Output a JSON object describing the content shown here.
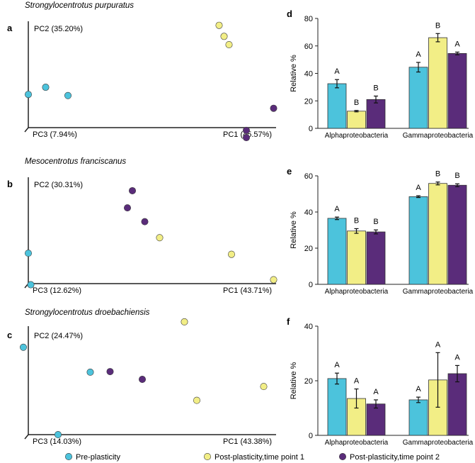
{
  "colors": {
    "pre": "#4cc3dc",
    "tp1": "#f2ee86",
    "tp2": "#5a2c7a",
    "axis": "#222222",
    "stroke": "#333333"
  },
  "legend": {
    "items": [
      {
        "label": "Pre-plasticity",
        "color_key": "pre"
      },
      {
        "label": "Post-plasticity,time point 1",
        "color_key": "tp1"
      },
      {
        "label": "Post-plasticity,time point 2",
        "color_key": "tp2"
      }
    ]
  },
  "chart_data": [
    {
      "id": "a",
      "type": "scatter",
      "panel_label": "a",
      "title": "Strongylocentrotus purpuratus",
      "xlabel": "PC1 (45.57%)",
      "ylabel": "PC2 (35.20%)",
      "corner_label": "PC3 (7.94%)",
      "series": [
        {
          "group": "pre",
          "points": [
            [
              0,
              0.6
            ],
            [
              0.07,
              0.73
            ],
            [
              0.16,
              0.58
            ]
          ]
        },
        {
          "group": "tp1",
          "points": [
            [
              0.77,
              1.85
            ],
            [
              0.79,
              1.65
            ],
            [
              0.81,
              1.5
            ]
          ]
        },
        {
          "group": "tp2",
          "points": [
            [
              0.88,
              -0.05
            ],
            [
              0.88,
              -0.18
            ],
            [
              0.99,
              0.35
            ]
          ]
        }
      ]
    },
    {
      "id": "b",
      "type": "scatter",
      "panel_label": "b",
      "title": "Mesocentrotus franciscanus",
      "xlabel": "PC1 (43.71%)",
      "ylabel": "PC2 (30.31%)",
      "corner_label": "PC3 (12.62%)",
      "series": [
        {
          "group": "pre",
          "points": [
            [
              0,
              0.55
            ],
            [
              0.01,
              -0.02
            ]
          ]
        },
        {
          "group": "tp1",
          "points": [
            [
              0.53,
              0.83
            ],
            [
              0.82,
              0.53
            ],
            [
              0.99,
              0.07
            ]
          ]
        },
        {
          "group": "tp2",
          "points": [
            [
              0.42,
              1.68
            ],
            [
              0.4,
              1.37
            ],
            [
              0.47,
              1.12
            ]
          ]
        }
      ]
    },
    {
      "id": "c",
      "type": "scatter",
      "panel_label": "c",
      "title": "Strongylocentrotus droebachiensis",
      "xlabel": "PC1 (43.38%)",
      "ylabel": "PC2 (24.47%)",
      "corner_label": "PC3 (14.03%)",
      "series": [
        {
          "group": "pre",
          "points": [
            [
              -0.02,
              1.58
            ],
            [
              0.25,
              1.13
            ],
            [
              0.12,
              0.0
            ]
          ]
        },
        {
          "group": "tp1",
          "points": [
            [
              0.63,
              2.04
            ],
            [
              0.68,
              0.62
            ],
            [
              0.95,
              0.87
            ]
          ]
        },
        {
          "group": "tp2",
          "points": [
            [
              0.33,
              1.14
            ],
            [
              0.46,
              1.0
            ]
          ]
        }
      ]
    },
    {
      "id": "d",
      "type": "bar",
      "panel_label": "d",
      "ylabel": "Relative %",
      "ylim": [
        0,
        80
      ],
      "yticks": [
        0,
        20,
        40,
        60,
        80
      ],
      "categories": [
        "Alphaproteobacteria",
        "Gammaproteobacteria"
      ],
      "series": [
        {
          "group": "pre",
          "values": [
            32.5,
            44.5
          ],
          "errors": [
            3,
            3.5
          ],
          "letters": [
            "A",
            "A"
          ]
        },
        {
          "group": "tp1",
          "values": [
            12.5,
            66
          ],
          "errors": [
            0.5,
            3
          ],
          "letters": [
            "B",
            "B"
          ]
        },
        {
          "group": "tp2",
          "values": [
            21,
            54.5
          ],
          "errors": [
            2.5,
            1
          ],
          "letters": [
            "B",
            "A"
          ]
        }
      ]
    },
    {
      "id": "e",
      "type": "bar",
      "panel_label": "e",
      "ylabel": "Relative %",
      "ylim": [
        0,
        60
      ],
      "yticks": [
        0,
        20,
        40,
        60
      ],
      "categories": [
        "Alphaproteobacteria",
        "Gammaproteobacteria"
      ],
      "series": [
        {
          "group": "pre",
          "values": [
            36.5,
            48.5
          ],
          "errors": [
            0.7,
            0.5
          ],
          "letters": [
            "A",
            "A"
          ]
        },
        {
          "group": "tp1",
          "values": [
            29.5,
            55.8
          ],
          "errors": [
            1.3,
            0.8
          ],
          "letters": [
            "B",
            "B"
          ]
        },
        {
          "group": "tp2",
          "values": [
            29,
            54.8
          ],
          "errors": [
            1.1,
            0.8
          ],
          "letters": [
            "B",
            "B"
          ]
        }
      ]
    },
    {
      "id": "f",
      "type": "bar",
      "panel_label": "f",
      "ylabel": "Relative %",
      "ylim": [
        0,
        40
      ],
      "yticks": [
        0,
        20,
        40
      ],
      "categories": [
        "Alphaproteobacteria",
        "Gammaproteobacteria"
      ],
      "series": [
        {
          "group": "pre",
          "values": [
            20.8,
            13
          ],
          "errors": [
            2,
            1
          ],
          "letters": [
            "A",
            "A"
          ]
        },
        {
          "group": "tp1",
          "values": [
            13.5,
            20.3
          ],
          "errors": [
            3.5,
            10
          ],
          "letters": [
            "A",
            "A"
          ]
        },
        {
          "group": "tp2",
          "values": [
            11.5,
            22.6
          ],
          "errors": [
            1.5,
            3
          ],
          "letters": [
            "A",
            "A"
          ]
        }
      ]
    }
  ]
}
